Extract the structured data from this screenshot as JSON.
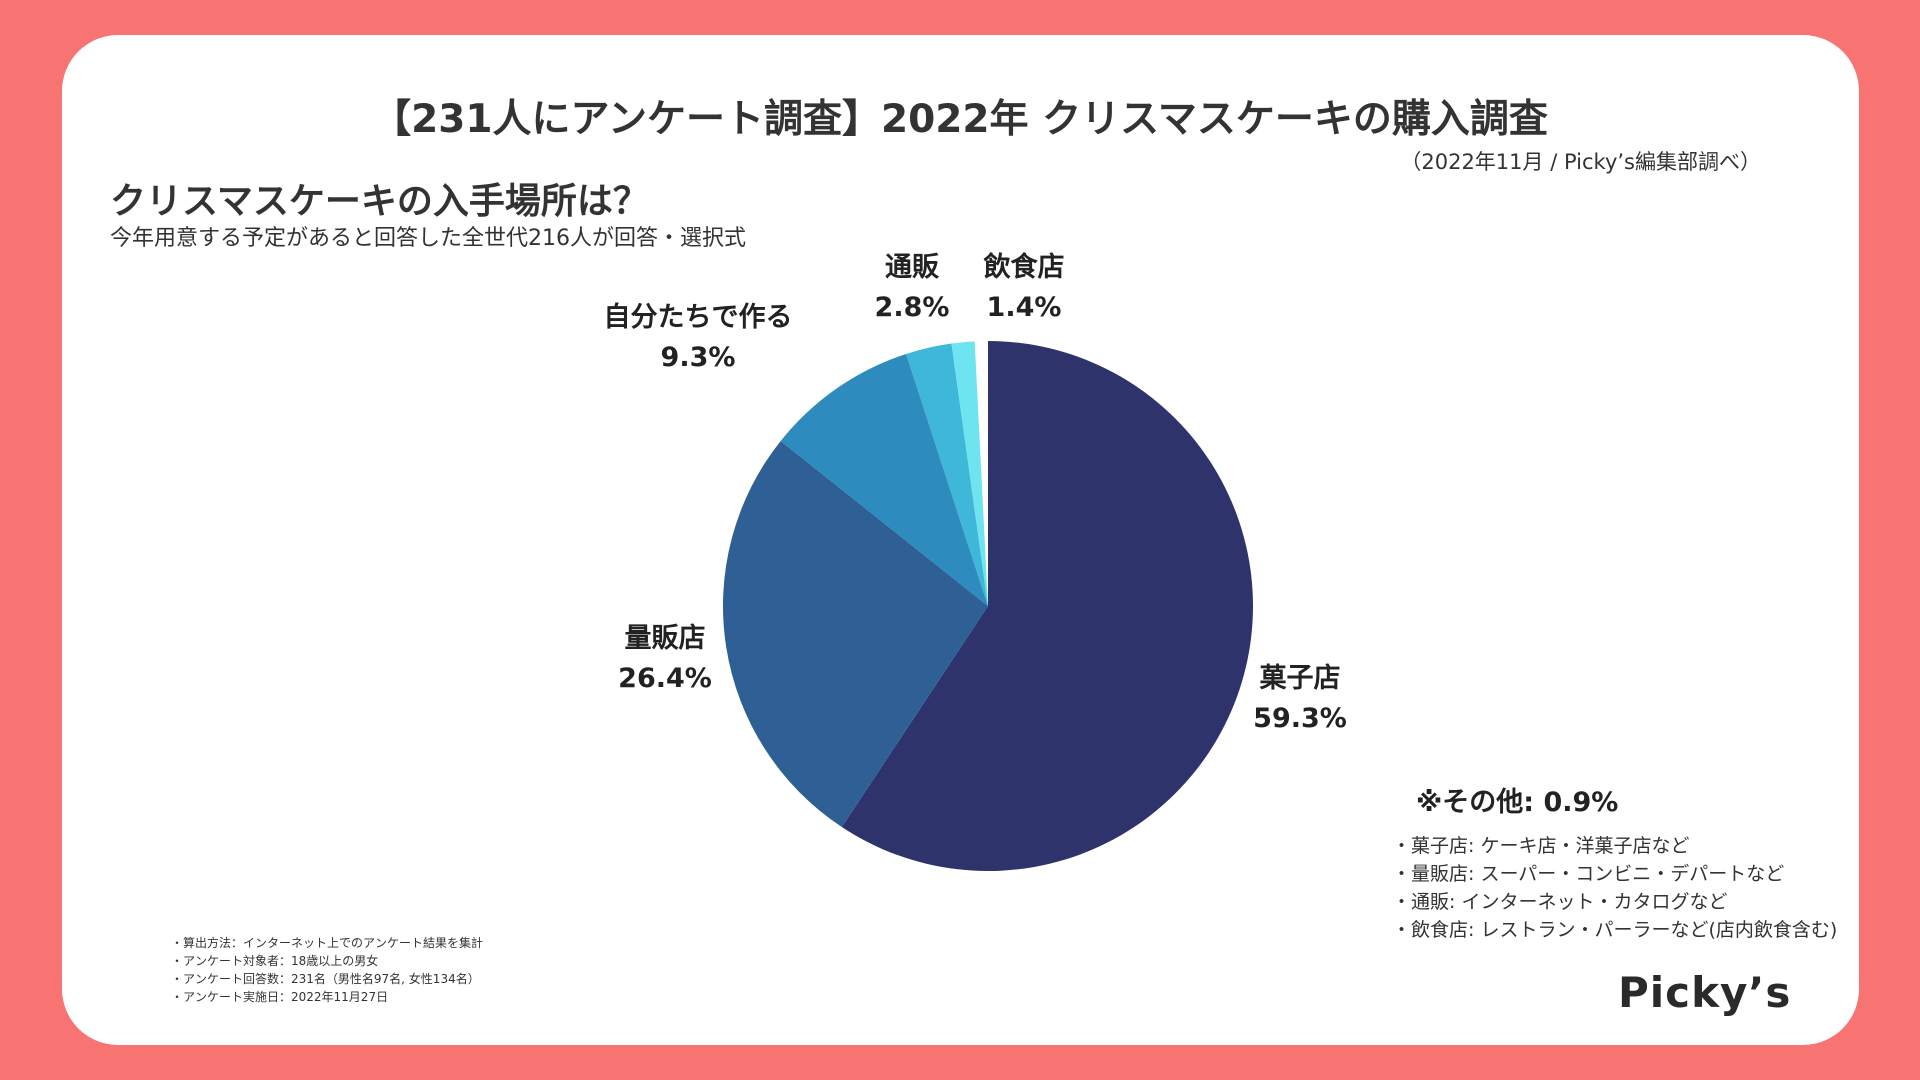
{
  "header": {
    "title": "【231人にアンケート調査】2022年 クリスマスケーキの購入調査",
    "source": "（2022年11月 / Picky’s編集部調べ）"
  },
  "question": {
    "title": "クリスマスケーキの入手場所は？",
    "note": "今年用意する予定があると回答した全世代216人が回答・選択式"
  },
  "chart_data": {
    "type": "pie",
    "categories": [
      "菓子店",
      "量販店",
      "自分たちで作る",
      "通販",
      "飲食店"
    ],
    "values": [
      59.3,
      26.4,
      9.3,
      2.8,
      1.4
    ],
    "value_labels": [
      "59.3%",
      "26.4%",
      "9.3%",
      "2.8%",
      "1.4%"
    ],
    "colors": [
      "#2f336b",
      "#2e6096",
      "#2d8cbd",
      "#3fb7d8",
      "#6ee4f0"
    ],
    "start": "top",
    "direction": "clockwise",
    "other": "※その他: 0.9%"
  },
  "definitions": [
    "・菓子店: ケーキ店・洋菓子店など",
    "・量販店: スーパー・コンビニ・デパートなど",
    "・通販: インターネット・カタログなど",
    "・飲食店: レストラン・パーラーなど(店内飲食含む)"
  ],
  "method": [
    "・算出方法：インターネット上でのアンケート結果を集計",
    "・アンケート対象者：18歳以上の男女",
    "・アンケート回答数：231名（男性名97名, 女性134名）",
    "・アンケート実施日：2022年11月27日"
  ],
  "logo": "Picky’s",
  "colors": {
    "background": "#f87472",
    "card": "#ffffff"
  }
}
